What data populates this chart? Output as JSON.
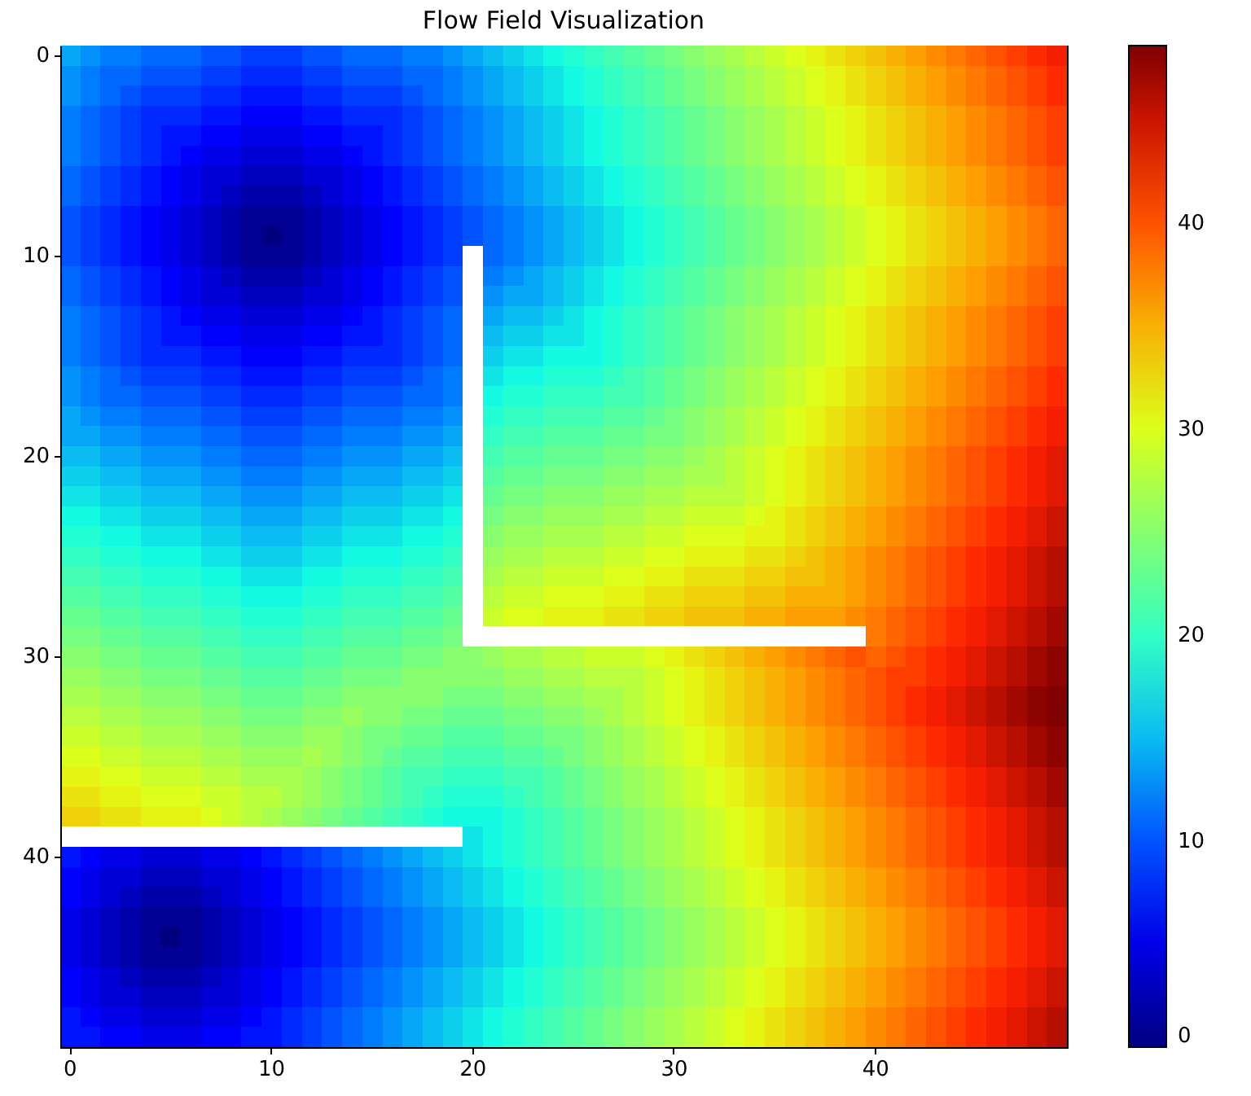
{
  "chart_data": {
    "type": "heatmap",
    "title": "Flow Field Visualization",
    "categories": [
      "0",
      null,
      null,
      null,
      null,
      null,
      null,
      null,
      null,
      null,
      "10",
      null,
      null,
      null,
      null,
      null,
      null,
      null,
      null,
      null,
      "20",
      null,
      null,
      null,
      null,
      null,
      null,
      null,
      null,
      null,
      "30",
      null,
      null,
      null,
      null,
      null,
      null,
      null,
      null,
      null,
      "40",
      null,
      null,
      null,
      null,
      null,
      null,
      null,
      null,
      null
    ],
    "y_categories": [
      "0",
      null,
      null,
      null,
      null,
      null,
      null,
      null,
      null,
      null,
      "10",
      null,
      null,
      null,
      null,
      null,
      null,
      null,
      null,
      null,
      "20",
      null,
      null,
      null,
      null,
      null,
      null,
      null,
      null,
      null,
      "30",
      null,
      null,
      null,
      null,
      null,
      null,
      null,
      null,
      null,
      "40",
      null,
      null,
      null,
      null,
      null,
      null,
      null,
      null,
      null
    ],
    "clim": [
      0,
      48.6
    ],
    "cticks": [
      0,
      10,
      20,
      30,
      40
    ],
    "cells": [
      [
        14,
        13,
        12,
        12,
        11,
        11,
        11,
        10,
        10,
        9,
        9,
        9,
        10,
        10,
        11,
        11,
        11,
        12,
        12,
        13,
        14,
        15,
        16,
        17,
        18,
        19,
        20,
        21,
        22,
        23,
        24,
        25,
        26,
        27,
        28,
        29,
        30,
        31,
        32,
        33,
        34,
        35,
        36,
        37,
        38,
        39,
        40,
        41,
        42,
        43
      ],
      [
        13,
        12,
        11,
        11,
        10,
        10,
        10,
        9,
        9,
        8,
        8,
        8,
        9,
        9,
        10,
        10,
        10,
        11,
        11,
        12,
        13,
        14,
        15,
        16,
        17,
        18,
        19,
        20,
        21,
        22,
        23,
        24,
        25,
        26,
        27,
        28,
        29,
        30,
        31,
        32,
        33,
        34,
        35,
        36,
        37,
        38,
        39,
        40,
        41,
        42
      ],
      [
        13,
        12,
        11,
        10,
        9,
        9,
        9,
        8,
        8,
        7,
        7,
        7,
        8,
        8,
        9,
        9,
        9,
        10,
        11,
        12,
        13,
        14,
        15,
        16,
        17,
        18,
        19,
        20,
        21,
        22,
        23,
        24,
        25,
        26,
        27,
        28,
        29,
        30,
        31,
        32,
        33,
        34,
        35,
        36,
        37,
        38,
        39,
        40,
        41,
        42
      ],
      [
        12,
        11,
        10,
        9,
        8,
        8,
        8,
        7,
        7,
        6,
        6,
        6,
        7,
        7,
        8,
        8,
        8,
        9,
        10,
        11,
        12,
        13,
        14,
        15,
        16,
        17,
        18,
        19,
        20,
        21,
        22,
        23,
        24,
        25,
        26,
        27,
        28,
        29,
        30,
        31,
        32,
        33,
        34,
        35,
        36,
        37,
        38,
        39,
        40,
        41
      ],
      [
        12,
        11,
        10,
        9,
        8,
        7,
        7,
        6,
        6,
        5,
        5,
        5,
        6,
        6,
        7,
        7,
        8,
        9,
        10,
        11,
        12,
        13,
        14,
        15,
        16,
        17,
        18,
        19,
        20,
        21,
        22,
        23,
        24,
        25,
        26,
        27,
        28,
        29,
        30,
        31,
        32,
        33,
        34,
        35,
        36,
        37,
        38,
        39,
        40,
        41
      ],
      [
        12,
        11,
        10,
        9,
        8,
        7,
        6,
        5,
        5,
        4,
        4,
        4,
        5,
        5,
        6,
        7,
        8,
        9,
        10,
        11,
        12,
        13,
        14,
        15,
        16,
        17,
        18,
        19,
        20,
        21,
        22,
        23,
        24,
        25,
        26,
        27,
        28,
        29,
        30,
        31,
        32,
        33,
        34,
        35,
        36,
        37,
        38,
        39,
        40,
        41
      ],
      [
        11,
        10,
        9,
        8,
        7,
        6,
        5,
        4,
        4,
        3,
        3,
        3,
        4,
        4,
        5,
        6,
        7,
        8,
        9,
        10,
        11,
        12,
        13,
        14,
        15,
        16,
        17,
        18,
        19,
        20,
        21,
        22,
        23,
        24,
        25,
        26,
        27,
        28,
        29,
        30,
        31,
        32,
        33,
        34,
        35,
        36,
        37,
        38,
        39,
        40
      ],
      [
        11,
        10,
        9,
        8,
        7,
        6,
        5,
        4,
        3,
        2,
        2,
        2,
        3,
        4,
        5,
        6,
        7,
        8,
        9,
        10,
        11,
        12,
        13,
        14,
        15,
        16,
        17,
        18,
        19,
        20,
        21,
        22,
        23,
        24,
        25,
        26,
        27,
        28,
        29,
        30,
        31,
        32,
        33,
        34,
        35,
        36,
        37,
        38,
        39,
        40
      ],
      [
        10,
        9,
        8,
        7,
        6,
        5,
        4,
        3,
        2,
        1,
        1,
        1,
        2,
        3,
        4,
        5,
        6,
        7,
        8,
        9,
        10,
        11,
        12,
        13,
        14,
        15,
        16,
        17,
        18,
        19,
        20,
        21,
        22,
        23,
        24,
        25,
        26,
        27,
        28,
        29,
        30,
        31,
        32,
        33,
        34,
        35,
        36,
        37,
        38,
        39
      ],
      [
        10,
        9,
        8,
        7,
        6,
        5,
        4,
        3,
        2,
        1,
        0,
        1,
        2,
        3,
        4,
        5,
        6,
        7,
        8,
        9,
        10,
        11,
        12,
        13,
        14,
        15,
        16,
        17,
        18,
        19,
        20,
        21,
        22,
        23,
        24,
        25,
        26,
        27,
        28,
        29,
        30,
        31,
        32,
        33,
        34,
        35,
        36,
        37,
        38,
        39
      ],
      [
        10,
        9,
        8,
        7,
        6,
        5,
        4,
        3,
        2,
        1,
        1,
        1,
        2,
        3,
        4,
        5,
        6,
        7,
        8,
        9,
        null,
        11,
        12,
        13,
        14,
        15,
        16,
        17,
        18,
        19,
        20,
        21,
        22,
        23,
        24,
        25,
        26,
        27,
        28,
        29,
        30,
        31,
        32,
        33,
        34,
        35,
        36,
        37,
        38,
        39
      ],
      [
        11,
        10,
        9,
        8,
        7,
        6,
        5,
        4,
        3,
        2,
        2,
        2,
        3,
        4,
        5,
        6,
        7,
        8,
        9,
        10,
        null,
        12,
        13,
        14,
        15,
        16,
        17,
        18,
        19,
        20,
        21,
        22,
        23,
        24,
        25,
        26,
        27,
        28,
        29,
        30,
        31,
        32,
        33,
        34,
        35,
        36,
        37,
        38,
        39,
        40
      ],
      [
        11,
        10,
        9,
        8,
        7,
        6,
        5,
        4,
        4,
        3,
        3,
        3,
        4,
        4,
        5,
        6,
        7,
        8,
        9,
        10,
        null,
        13,
        14,
        14,
        15,
        16,
        17,
        18,
        19,
        20,
        21,
        22,
        23,
        24,
        25,
        26,
        27,
        28,
        29,
        30,
        31,
        32,
        33,
        34,
        35,
        36,
        37,
        38,
        39,
        40
      ],
      [
        12,
        11,
        10,
        9,
        8,
        7,
        6,
        5,
        5,
        4,
        4,
        4,
        5,
        5,
        6,
        7,
        8,
        9,
        10,
        11,
        null,
        14,
        15,
        15,
        16,
        17,
        18,
        19,
        20,
        21,
        22,
        23,
        24,
        25,
        26,
        27,
        28,
        29,
        30,
        31,
        32,
        33,
        34,
        35,
        36,
        37,
        38,
        39,
        40,
        41
      ],
      [
        12,
        11,
        10,
        9,
        8,
        7,
        7,
        6,
        6,
        5,
        5,
        5,
        6,
        6,
        7,
        7,
        8,
        9,
        10,
        11,
        null,
        15,
        16,
        16,
        17,
        17,
        18,
        19,
        20,
        21,
        22,
        23,
        24,
        25,
        26,
        27,
        28,
        29,
        30,
        31,
        32,
        33,
        34,
        35,
        36,
        37,
        38,
        39,
        40,
        41
      ],
      [
        12,
        11,
        10,
        9,
        8,
        8,
        8,
        7,
        7,
        6,
        6,
        6,
        7,
        7,
        8,
        8,
        8,
        9,
        10,
        11,
        null,
        16,
        17,
        17,
        18,
        18,
        18,
        19,
        20,
        21,
        22,
        23,
        24,
        25,
        26,
        27,
        28,
        29,
        30,
        31,
        32,
        33,
        34,
        35,
        36,
        37,
        38,
        39,
        40,
        41
      ],
      [
        13,
        12,
        11,
        10,
        9,
        9,
        9,
        8,
        8,
        7,
        7,
        7,
        8,
        8,
        9,
        9,
        9,
        10,
        11,
        12,
        null,
        17,
        18,
        18,
        19,
        19,
        19,
        20,
        21,
        22,
        23,
        24,
        25,
        26,
        27,
        28,
        29,
        30,
        31,
        32,
        33,
        34,
        35,
        36,
        37,
        38,
        39,
        40,
        41,
        42
      ],
      [
        13,
        12,
        11,
        11,
        10,
        10,
        10,
        9,
        9,
        8,
        8,
        8,
        9,
        9,
        10,
        10,
        10,
        11,
        11,
        12,
        null,
        18,
        19,
        19,
        20,
        20,
        20,
        21,
        21,
        22,
        23,
        24,
        25,
        26,
        27,
        28,
        29,
        30,
        31,
        32,
        33,
        34,
        35,
        36,
        37,
        38,
        39,
        40,
        41,
        42
      ],
      [
        14,
        13,
        12,
        12,
        11,
        11,
        11,
        10,
        10,
        9,
        9,
        9,
        10,
        10,
        11,
        11,
        11,
        12,
        12,
        13,
        null,
        19,
        20,
        20,
        21,
        21,
        21,
        22,
        22,
        23,
        24,
        25,
        26,
        27,
        28,
        29,
        30,
        31,
        32,
        33,
        34,
        35,
        36,
        37,
        38,
        39,
        40,
        41,
        42,
        43
      ],
      [
        14,
        14,
        13,
        13,
        12,
        12,
        12,
        11,
        11,
        10,
        10,
        10,
        11,
        11,
        12,
        12,
        12,
        13,
        13,
        14,
        null,
        20,
        21,
        21,
        22,
        22,
        22,
        23,
        23,
        24,
        24,
        25,
        26,
        27,
        28,
        29,
        30,
        31,
        32,
        33,
        34,
        35,
        36,
        37,
        38,
        39,
        40,
        41,
        42,
        43
      ],
      [
        15,
        15,
        14,
        14,
        13,
        13,
        13,
        12,
        12,
        11,
        11,
        11,
        12,
        12,
        13,
        13,
        13,
        14,
        14,
        15,
        null,
        21,
        22,
        22,
        23,
        23,
        23,
        24,
        24,
        25,
        25,
        26,
        27,
        28,
        29,
        30,
        31,
        32,
        33,
        34,
        35,
        36,
        37,
        38,
        39,
        40,
        41,
        42,
        43,
        44
      ],
      [
        16,
        16,
        15,
        15,
        14,
        14,
        14,
        13,
        13,
        12,
        12,
        12,
        13,
        13,
        14,
        14,
        14,
        15,
        15,
        16,
        null,
        22,
        23,
        23,
        24,
        24,
        24,
        25,
        25,
        26,
        26,
        27,
        27,
        28,
        29,
        30,
        31,
        32,
        33,
        34,
        35,
        36,
        37,
        38,
        39,
        40,
        41,
        42,
        43,
        44
      ],
      [
        17,
        17,
        16,
        16,
        15,
        15,
        15,
        14,
        14,
        13,
        13,
        13,
        14,
        14,
        15,
        15,
        15,
        16,
        16,
        17,
        null,
        23,
        24,
        24,
        25,
        25,
        25,
        26,
        26,
        27,
        27,
        28,
        28,
        28,
        29,
        30,
        31,
        32,
        33,
        34,
        35,
        36,
        37,
        38,
        39,
        40,
        41,
        42,
        43,
        44
      ],
      [
        18,
        18,
        17,
        17,
        16,
        16,
        16,
        15,
        15,
        14,
        14,
        14,
        15,
        15,
        16,
        16,
        16,
        17,
        17,
        18,
        null,
        24,
        25,
        25,
        26,
        26,
        26,
        27,
        27,
        28,
        28,
        29,
        29,
        29,
        30,
        31,
        32,
        33,
        34,
        35,
        36,
        37,
        38,
        39,
        40,
        41,
        42,
        43,
        44,
        45
      ],
      [
        19,
        19,
        18,
        18,
        17,
        17,
        17,
        16,
        16,
        15,
        15,
        15,
        16,
        16,
        17,
        17,
        17,
        18,
        18,
        19,
        null,
        25,
        26,
        26,
        27,
        27,
        27,
        28,
        28,
        29,
        29,
        30,
        30,
        30,
        31,
        31,
        32,
        33,
        34,
        35,
        36,
        37,
        38,
        39,
        40,
        41,
        42,
        43,
        44,
        45
      ],
      [
        20,
        20,
        19,
        19,
        18,
        18,
        18,
        17,
        17,
        16,
        16,
        16,
        17,
        17,
        18,
        18,
        18,
        19,
        19,
        20,
        null,
        26,
        27,
        27,
        28,
        28,
        28,
        29,
        29,
        30,
        30,
        31,
        31,
        31,
        32,
        32,
        33,
        34,
        35,
        36,
        37,
        38,
        39,
        40,
        41,
        42,
        43,
        44,
        45,
        46
      ],
      [
        21,
        21,
        20,
        20,
        19,
        19,
        19,
        18,
        18,
        17,
        17,
        17,
        18,
        18,
        19,
        19,
        19,
        20,
        20,
        21,
        null,
        27,
        28,
        28,
        29,
        29,
        29,
        30,
        30,
        31,
        31,
        32,
        32,
        32,
        33,
        33,
        34,
        34,
        35,
        36,
        37,
        38,
        39,
        40,
        41,
        42,
        43,
        44,
        45,
        46
      ],
      [
        22,
        22,
        21,
        21,
        20,
        20,
        20,
        19,
        19,
        18,
        18,
        18,
        19,
        19,
        20,
        20,
        20,
        21,
        21,
        22,
        null,
        28,
        29,
        29,
        30,
        30,
        30,
        31,
        31,
        32,
        32,
        33,
        33,
        33,
        34,
        34,
        35,
        35,
        35,
        36,
        37,
        38,
        39,
        40,
        41,
        42,
        43,
        44,
        45,
        46
      ],
      [
        23,
        23,
        22,
        22,
        21,
        21,
        21,
        20,
        20,
        19,
        19,
        19,
        20,
        20,
        21,
        21,
        21,
        22,
        22,
        23,
        null,
        29,
        30,
        30,
        31,
        31,
        31,
        32,
        32,
        33,
        33,
        34,
        34,
        34,
        35,
        35,
        36,
        36,
        36,
        37,
        38,
        39,
        40,
        41,
        42,
        43,
        44,
        45,
        46,
        47
      ],
      [
        24,
        24,
        23,
        23,
        22,
        22,
        22,
        21,
        21,
        20,
        20,
        20,
        21,
        21,
        22,
        22,
        22,
        23,
        23,
        24,
        null,
        null,
        null,
        null,
        null,
        null,
        null,
        null,
        null,
        null,
        null,
        null,
        null,
        null,
        null,
        null,
        null,
        null,
        null,
        null,
        38,
        39,
        40,
        41,
        42,
        43,
        44,
        45,
        46,
        47
      ],
      [
        25,
        25,
        24,
        24,
        23,
        23,
        23,
        22,
        22,
        21,
        21,
        21,
        22,
        22,
        23,
        23,
        23,
        24,
        24,
        25,
        25,
        26,
        27,
        27,
        28,
        28,
        29,
        29,
        29,
        30,
        31,
        32,
        33,
        34,
        35,
        36,
        37,
        38,
        39,
        40,
        39,
        40,
        41,
        42,
        43,
        44,
        45,
        46,
        47,
        48
      ],
      [
        26,
        26,
        25,
        25,
        24,
        24,
        24,
        23,
        23,
        22,
        22,
        22,
        23,
        23,
        24,
        24,
        24,
        25,
        25,
        25,
        25,
        25,
        26,
        26,
        27,
        27,
        28,
        28,
        28,
        29,
        30,
        31,
        32,
        33,
        34,
        35,
        36,
        37,
        38,
        39,
        40,
        41,
        41,
        42,
        43,
        44,
        45,
        46,
        47,
        48
      ],
      [
        27,
        27,
        26,
        26,
        25,
        25,
        25,
        24,
        24,
        23,
        23,
        23,
        24,
        24,
        25,
        25,
        25,
        25,
        25,
        24,
        24,
        24,
        25,
        25,
        26,
        26,
        27,
        27,
        28,
        29,
        30,
        31,
        32,
        33,
        34,
        35,
        36,
        37,
        38,
        39,
        40,
        41,
        42,
        43,
        44,
        45,
        46,
        47,
        48,
        48.5
      ],
      [
        28,
        28,
        27,
        27,
        26,
        26,
        26,
        25,
        25,
        24,
        24,
        24,
        25,
        25,
        26,
        25,
        25,
        24,
        24,
        23,
        23,
        23,
        24,
        24,
        25,
        25,
        26,
        27,
        28,
        29,
        30,
        31,
        32,
        33,
        34,
        35,
        36,
        37,
        38,
        39,
        40,
        41,
        42,
        43,
        44,
        45,
        46,
        47,
        48,
        48.6
      ],
      [
        29,
        29,
        28,
        28,
        27,
        27,
        27,
        26,
        26,
        25,
        25,
        25,
        26,
        26,
        25,
        24,
        24,
        23,
        23,
        22,
        22,
        22,
        23,
        23,
        24,
        24,
        25,
        26,
        27,
        28,
        29,
        30,
        31,
        32,
        33,
        34,
        35,
        36,
        37,
        38,
        39,
        40,
        41,
        42,
        43,
        44,
        45,
        46,
        47,
        48
      ],
      [
        30,
        30,
        29,
        29,
        28,
        28,
        28,
        27,
        27,
        26,
        26,
        26,
        27,
        26,
        25,
        24,
        23,
        22,
        22,
        21,
        21,
        21,
        22,
        22,
        23,
        24,
        25,
        26,
        27,
        28,
        29,
        30,
        31,
        32,
        33,
        34,
        35,
        36,
        37,
        38,
        39,
        40,
        41,
        42,
        43,
        44,
        45,
        46,
        47,
        48
      ],
      [
        31,
        31,
        30,
        30,
        29,
        29,
        29,
        28,
        28,
        27,
        27,
        27,
        26,
        25,
        24,
        23,
        22,
        21,
        21,
        20,
        20,
        20,
        21,
        21,
        22,
        23,
        24,
        25,
        26,
        27,
        28,
        29,
        30,
        31,
        32,
        33,
        34,
        35,
        36,
        37,
        38,
        39,
        40,
        41,
        42,
        43,
        44,
        45,
        46,
        47
      ],
      [
        32,
        32,
        31,
        31,
        30,
        30,
        30,
        29,
        29,
        28,
        28,
        27,
        26,
        25,
        24,
        23,
        22,
        21,
        20,
        19,
        19,
        19,
        20,
        21,
        22,
        23,
        24,
        25,
        26,
        27,
        28,
        29,
        30,
        31,
        32,
        33,
        34,
        35,
        36,
        37,
        38,
        39,
        40,
        41,
        42,
        43,
        44,
        45,
        46,
        47
      ],
      [
        33,
        33,
        32,
        32,
        31,
        31,
        31,
        30,
        29,
        28,
        27,
        26,
        25,
        24,
        23,
        22,
        21,
        20,
        19,
        18,
        18,
        18,
        19,
        20,
        21,
        22,
        23,
        24,
        25,
        26,
        27,
        28,
        29,
        30,
        31,
        32,
        33,
        34,
        35,
        36,
        37,
        38,
        39,
        40,
        41,
        42,
        43,
        44,
        45,
        46
      ],
      [
        null,
        null,
        null,
        null,
        null,
        null,
        null,
        null,
        null,
        null,
        null,
        null,
        null,
        null,
        null,
        null,
        null,
        null,
        null,
        null,
        17,
        18,
        19,
        20,
        21,
        22,
        23,
        24,
        25,
        26,
        27,
        28,
        29,
        30,
        31,
        32,
        33,
        34,
        35,
        36,
        37,
        38,
        39,
        40,
        41,
        42,
        43,
        44,
        45,
        46
      ],
      [
        7,
        6,
        5,
        5,
        4,
        4,
        4,
        5,
        5,
        6,
        7,
        8,
        9,
        10,
        11,
        12,
        13,
        14,
        15,
        16,
        17,
        18,
        19,
        20,
        21,
        22,
        23,
        24,
        25,
        26,
        27,
        28,
        29,
        30,
        31,
        32,
        33,
        34,
        35,
        36,
        37,
        38,
        39,
        40,
        41,
        42,
        43,
        44,
        45,
        46
      ],
      [
        6,
        5,
        4,
        4,
        3,
        3,
        3,
        4,
        4,
        5,
        6,
        7,
        8,
        9,
        10,
        11,
        12,
        13,
        14,
        15,
        16,
        17,
        18,
        19,
        20,
        21,
        22,
        23,
        24,
        25,
        26,
        27,
        28,
        29,
        30,
        31,
        32,
        33,
        34,
        35,
        36,
        37,
        38,
        39,
        40,
        41,
        42,
        43,
        44,
        45
      ],
      [
        6,
        5,
        4,
        3,
        2,
        2,
        2,
        3,
        4,
        5,
        6,
        7,
        8,
        9,
        10,
        11,
        12,
        13,
        14,
        15,
        16,
        17,
        18,
        19,
        20,
        21,
        22,
        23,
        24,
        25,
        26,
        27,
        28,
        29,
        30,
        31,
        32,
        33,
        34,
        35,
        36,
        37,
        38,
        39,
        40,
        41,
        42,
        43,
        44,
        45
      ],
      [
        5,
        4,
        3,
        2,
        1,
        1,
        1,
        2,
        3,
        4,
        5,
        6,
        7,
        8,
        9,
        10,
        11,
        12,
        13,
        14,
        15,
        16,
        17,
        18,
        19,
        20,
        21,
        22,
        23,
        24,
        25,
        26,
        27,
        28,
        29,
        30,
        31,
        32,
        33,
        34,
        35,
        36,
        37,
        38,
        39,
        40,
        41,
        42,
        43,
        44
      ],
      [
        5,
        4,
        3,
        2,
        1,
        0,
        1,
        2,
        3,
        4,
        5,
        6,
        7,
        8,
        9,
        10,
        11,
        12,
        13,
        14,
        15,
        16,
        17,
        18,
        19,
        20,
        21,
        22,
        23,
        24,
        25,
        26,
        27,
        28,
        29,
        30,
        31,
        32,
        33,
        34,
        35,
        36,
        37,
        38,
        39,
        40,
        41,
        42,
        43,
        44
      ],
      [
        5,
        4,
        3,
        2,
        1,
        1,
        1,
        2,
        3,
        4,
        5,
        6,
        7,
        8,
        9,
        10,
        11,
        12,
        13,
        14,
        15,
        16,
        17,
        18,
        19,
        20,
        21,
        22,
        23,
        24,
        25,
        26,
        27,
        28,
        29,
        30,
        31,
        32,
        33,
        34,
        35,
        36,
        37,
        38,
        39,
        40,
        41,
        42,
        43,
        44
      ],
      [
        6,
        5,
        4,
        3,
        2,
        2,
        2,
        3,
        4,
        5,
        6,
        7,
        8,
        9,
        10,
        11,
        12,
        13,
        14,
        15,
        16,
        17,
        18,
        19,
        20,
        21,
        22,
        23,
        24,
        25,
        26,
        27,
        28,
        29,
        30,
        31,
        32,
        33,
        34,
        35,
        36,
        37,
        38,
        39,
        40,
        41,
        42,
        43,
        44,
        45
      ],
      [
        6,
        5,
        4,
        4,
        3,
        3,
        3,
        4,
        4,
        5,
        6,
        7,
        8,
        9,
        10,
        11,
        12,
        13,
        14,
        15,
        16,
        17,
        18,
        19,
        20,
        21,
        22,
        23,
        24,
        25,
        26,
        27,
        28,
        29,
        30,
        31,
        32,
        33,
        34,
        35,
        36,
        37,
        38,
        39,
        40,
        41,
        42,
        43,
        44,
        45
      ],
      [
        7,
        6,
        5,
        5,
        4,
        4,
        4,
        5,
        5,
        6,
        7,
        8,
        9,
        10,
        11,
        12,
        13,
        14,
        15,
        16,
        17,
        18,
        19,
        20,
        21,
        22,
        23,
        24,
        25,
        26,
        27,
        28,
        29,
        30,
        31,
        32,
        33,
        34,
        35,
        36,
        37,
        38,
        39,
        40,
        41,
        42,
        43,
        44,
        45,
        46
      ],
      [
        7,
        7,
        6,
        6,
        5,
        5,
        5,
        6,
        6,
        7,
        7,
        8,
        9,
        10,
        11,
        12,
        13,
        14,
        15,
        16,
        17,
        18,
        19,
        20,
        21,
        22,
        23,
        24,
        25,
        26,
        27,
        28,
        29,
        30,
        31,
        32,
        33,
        34,
        35,
        36,
        37,
        38,
        39,
        40,
        41,
        42,
        43,
        44,
        45,
        46
      ]
    ]
  }
}
